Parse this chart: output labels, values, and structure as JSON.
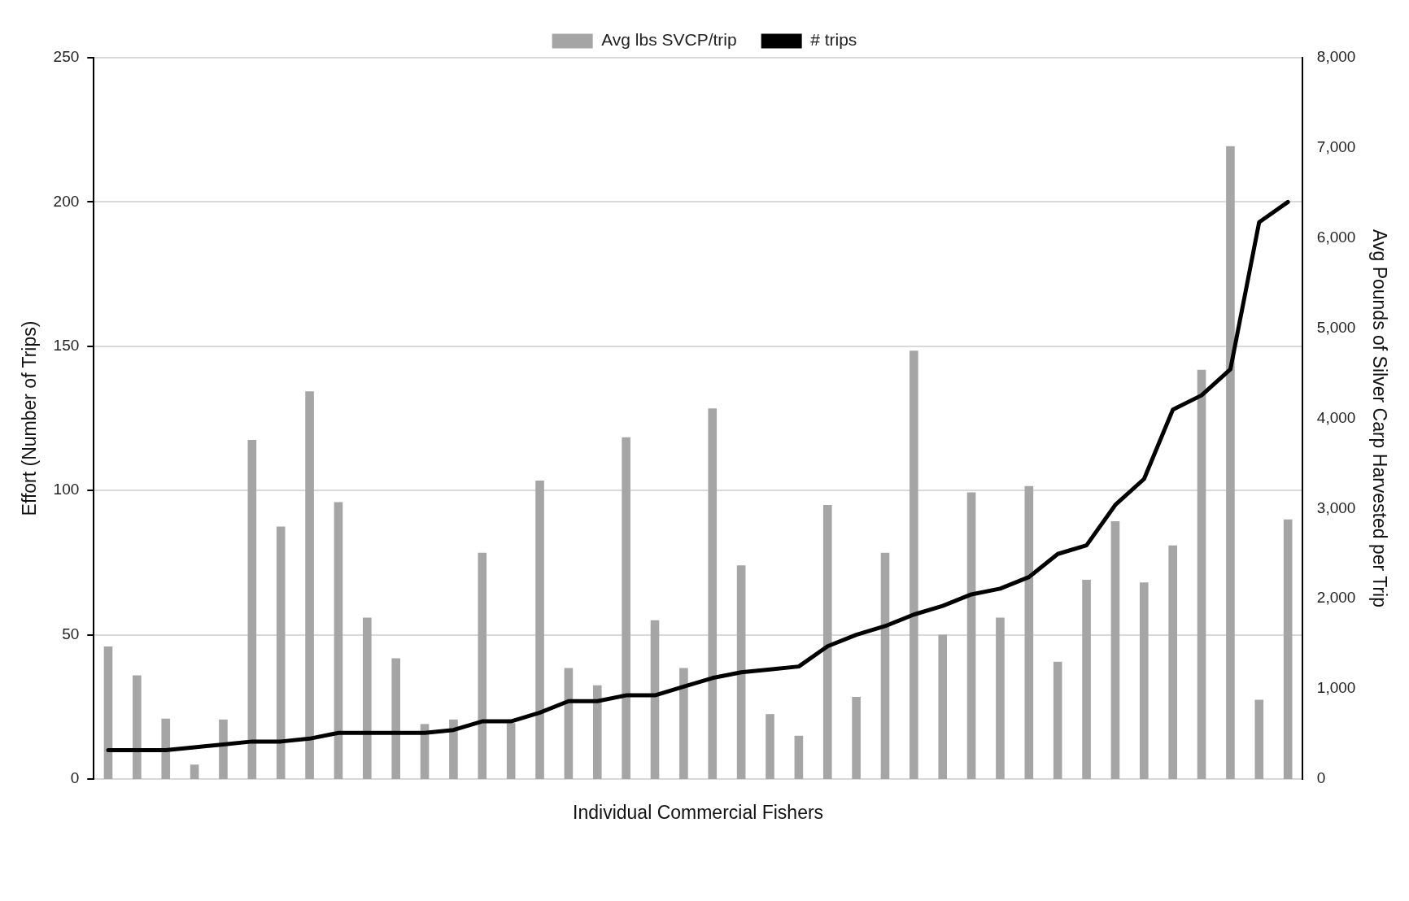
{
  "chart_data": {
    "type": "bar",
    "xlabel": "Individual Commercial Fishers",
    "ylabel": "Effort (Number of Trips)",
    "y2label": "Avg Pounds of Silver Carp Harvested per Trip",
    "categories": [
      null,
      null,
      null,
      null,
      null,
      null,
      null,
      null,
      null,
      null,
      null,
      null,
      null,
      null,
      null,
      null,
      null,
      null,
      null,
      null,
      null,
      null,
      null,
      null,
      null,
      null,
      null,
      null,
      null,
      null,
      null,
      null,
      null,
      null,
      null,
      null,
      null,
      null,
      null,
      null,
      null,
      null
    ],
    "series": [
      {
        "name": "Avg lbs SVCP/trip",
        "axis": "y2",
        "color": "#a5a5a5",
        "values": [
          1470,
          1150,
          670,
          160,
          660,
          3760,
          2800,
          4300,
          3070,
          1790,
          1340,
          610,
          660,
          2510,
          620,
          3310,
          1230,
          1040,
          3790,
          1760,
          1230,
          4110,
          2370,
          720,
          480,
          3040,
          910,
          2510,
          4750,
          1600,
          3180,
          1790,
          3250,
          1300,
          2210,
          2860,
          2180,
          2590,
          4540,
          7020,
          880,
          2880
        ]
      },
      {
        "name": "# trips",
        "type": "line",
        "axis": "y",
        "color": "#000000",
        "values": [
          10,
          10,
          10,
          11,
          12,
          13,
          13,
          14,
          16,
          16,
          16,
          16,
          17,
          20,
          20,
          23,
          27,
          27,
          29,
          29,
          32,
          35,
          37,
          38,
          39,
          46,
          50,
          53,
          57,
          60,
          64,
          66,
          70,
          78,
          81,
          95,
          104,
          128,
          133,
          142,
          193,
          200
        ]
      }
    ],
    "ylim": [
      0,
      250
    ],
    "yticks": [
      0,
      50,
      100,
      150,
      200,
      250
    ],
    "y2lim": [
      0,
      8000
    ],
    "y2ticks": [
      {
        "value": 0,
        "label": "0"
      },
      {
        "value": 1000,
        "label": "1,000"
      },
      {
        "value": 2000,
        "label": "2,000"
      },
      {
        "value": 3000,
        "label": "3,000"
      },
      {
        "value": 4000,
        "label": "4,000"
      },
      {
        "value": 5000,
        "label": "5,000"
      },
      {
        "value": 6000,
        "label": "6,000"
      },
      {
        "value": 7000,
        "label": "7,000"
      },
      {
        "value": 8000,
        "label": "8,000"
      }
    ],
    "grid": "y",
    "legend": "top",
    "marker": "none",
    "line_style": "solid"
  }
}
